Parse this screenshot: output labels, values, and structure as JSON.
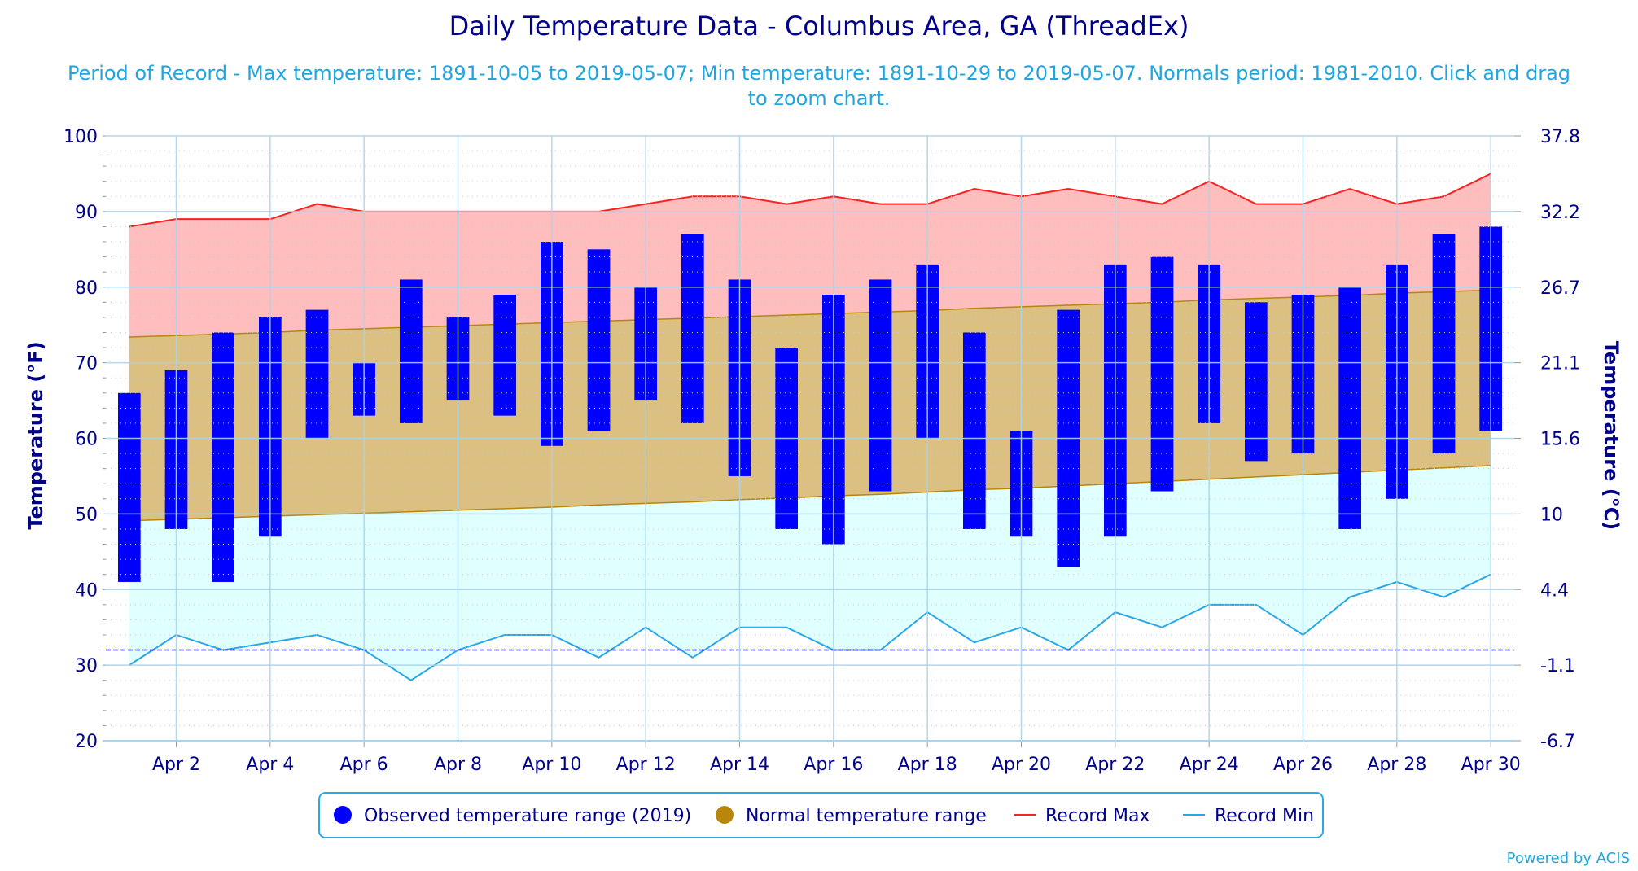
{
  "chart_data": {
    "type": "bar",
    "title": "Daily Temperature Data - Columbus Area, GA (ThreadEx)",
    "subtitle_line1": "Period of Record - Max temperature: 1891-10-05 to 2019-05-07; Min temperature: 1891-10-29 to 2019-05-07. Normals period: 1981-2010. Click and drag",
    "subtitle_line2": "to zoom chart.",
    "credit": "Powered by ACIS",
    "ylabel_left": "Temperature (°F)",
    "ylabel_right": "Temperature (°C)",
    "ylim": [
      20,
      100
    ],
    "yticks": [
      20,
      30,
      40,
      50,
      60,
      70,
      80,
      90,
      100
    ],
    "yticks_right": [
      "-6.7",
      "-1.1",
      "4.4",
      "10",
      "15.6",
      "21.1",
      "26.7",
      "32.2",
      "37.8"
    ],
    "freezing_line": 32,
    "xlim": [
      0.5,
      30.5
    ],
    "x": [
      1,
      2,
      3,
      4,
      5,
      6,
      7,
      8,
      9,
      10,
      11,
      12,
      13,
      14,
      15,
      16,
      17,
      18,
      19,
      20,
      21,
      22,
      23,
      24,
      25,
      26,
      27,
      28,
      29,
      30
    ],
    "xtick_values": [
      2,
      4,
      6,
      8,
      10,
      12,
      14,
      16,
      18,
      20,
      22,
      24,
      26,
      28,
      30
    ],
    "xtick_labels": [
      "Apr 2",
      "Apr 4",
      "Apr 6",
      "Apr 8",
      "Apr 10",
      "Apr 12",
      "Apr 14",
      "Apr 16",
      "Apr 18",
      "Apr 20",
      "Apr 22",
      "Apr 24",
      "Apr 26",
      "Apr 28",
      "Apr 30"
    ],
    "series": [
      {
        "name": "Observed temperature range (2019)",
        "color": "#0000ff",
        "low": [
          41,
          48,
          41,
          47,
          60,
          63,
          62,
          65,
          63,
          59,
          61,
          65,
          62,
          55,
          48,
          46,
          53,
          60,
          48,
          47,
          43,
          47,
          53,
          62,
          57,
          58,
          48,
          52,
          58,
          61
        ],
        "high": [
          66,
          69,
          74,
          76,
          77,
          70,
          81,
          76,
          79,
          86,
          85,
          80,
          87,
          81,
          72,
          79,
          81,
          83,
          74,
          61,
          77,
          83,
          84,
          83,
          78,
          79,
          80,
          83,
          87,
          88
        ]
      },
      {
        "name": "Normal temperature range",
        "color": "#b8860b",
        "low": [
          49.1,
          49.3,
          49.5,
          49.7,
          49.9,
          50.1,
          50.3,
          50.5,
          50.7,
          50.9,
          51.2,
          51.4,
          51.6,
          51.9,
          52.1,
          52.4,
          52.6,
          52.9,
          53.2,
          53.4,
          53.7,
          54.0,
          54.3,
          54.6,
          54.9,
          55.2,
          55.5,
          55.8,
          56.1,
          56.4
        ],
        "high": [
          73.4,
          73.6,
          73.8,
          74.0,
          74.3,
          74.5,
          74.7,
          74.9,
          75.1,
          75.3,
          75.5,
          75.7,
          75.9,
          76.1,
          76.3,
          76.5,
          76.7,
          76.9,
          77.2,
          77.4,
          77.6,
          77.8,
          78.0,
          78.3,
          78.5,
          78.7,
          78.9,
          79.2,
          79.4,
          79.6
        ]
      },
      {
        "name": "Record Max",
        "color": "#ff2020",
        "values": [
          88,
          89,
          89,
          89,
          91,
          90,
          90,
          90,
          90,
          90,
          90,
          91,
          92,
          92,
          91,
          92,
          91,
          91,
          93,
          92,
          93,
          92,
          91,
          94,
          91,
          91,
          93,
          91,
          92,
          95
        ]
      },
      {
        "name": "Record Min",
        "color": "#2aa7e6",
        "values": [
          30,
          34,
          32,
          33,
          34,
          32,
          28,
          32,
          34,
          34,
          31,
          35,
          31,
          35,
          35,
          32,
          32,
          37,
          33,
          35,
          32,
          37,
          35,
          38,
          38,
          34,
          39,
          41,
          39,
          42
        ]
      }
    ],
    "colors": {
      "record_area": "#ffbdbd",
      "normal_area": "#dcc081",
      "below_area": "#e0ffff",
      "freezing_line": "#0000cc",
      "grid": "#a9d4ea",
      "axis_text": "#00008b"
    },
    "legend_position": "bottom-center"
  }
}
